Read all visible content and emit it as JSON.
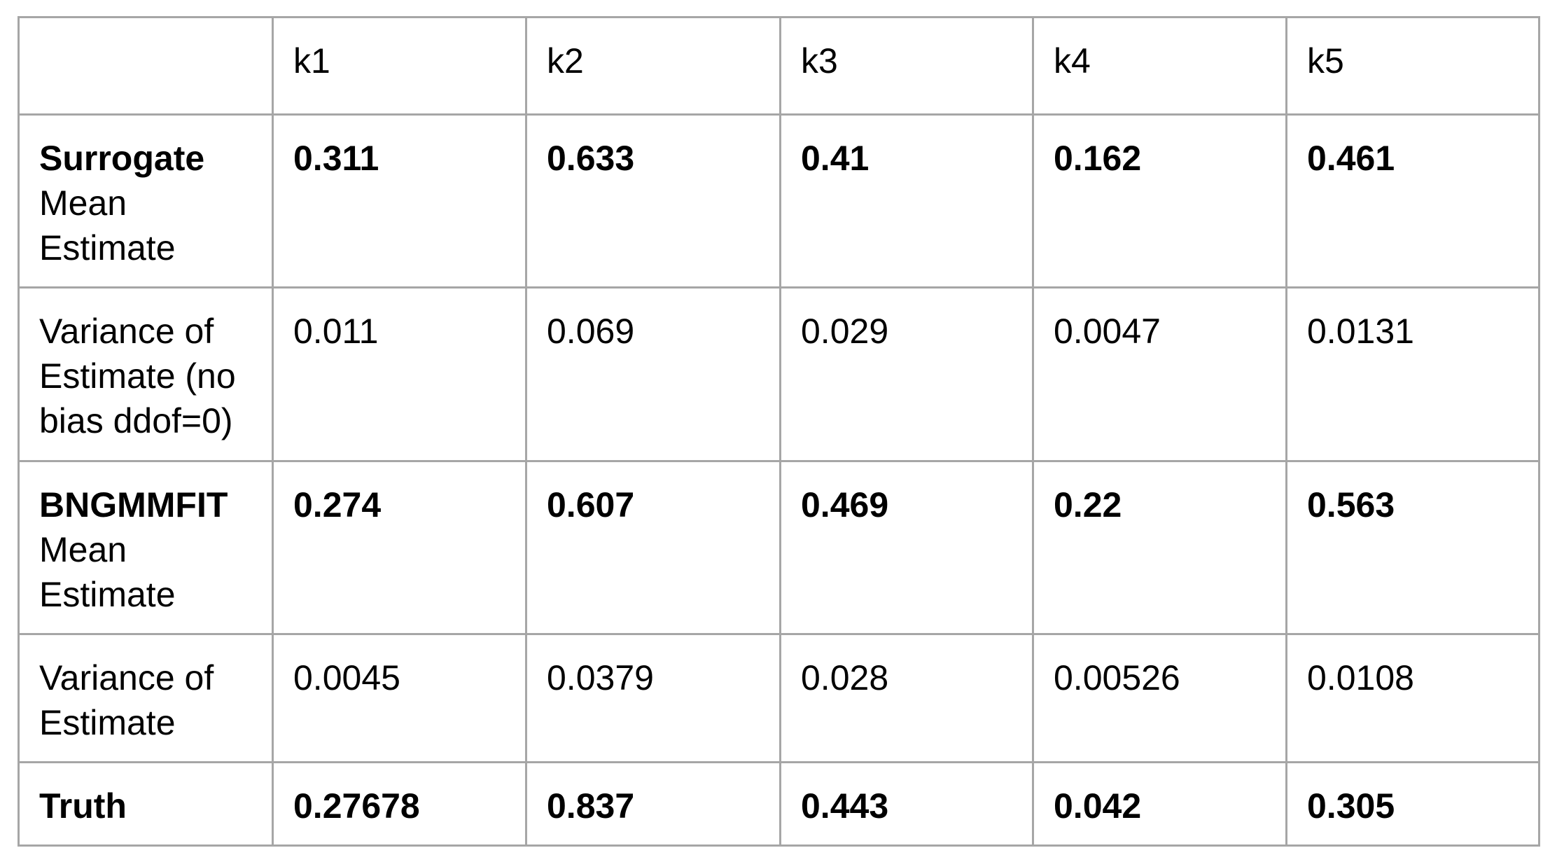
{
  "table": {
    "columns": [
      "k1",
      "k2",
      "k3",
      "k4",
      "k5"
    ],
    "rows": [
      {
        "label_bold": "Surrogate",
        "label": "Mean Estimate",
        "bold": true,
        "values": [
          0.311,
          0.633,
          0.41,
          0.162,
          0.461
        ]
      },
      {
        "label": "Variance of Estimate (no bias ddof=0)",
        "bold": false,
        "values": [
          0.011,
          0.069,
          0.029,
          0.0047,
          0.0131
        ]
      },
      {
        "label_bold": "BNGMMFIT",
        "label": "Mean Estimate",
        "bold": true,
        "values": [
          0.274,
          0.607,
          0.469,
          0.22,
          0.563
        ]
      },
      {
        "label": "Variance of Estimate",
        "bold": false,
        "values": [
          0.0045,
          0.0379,
          0.028,
          0.00526,
          0.0108
        ]
      },
      {
        "label_bold": "Truth",
        "bold": true,
        "values": [
          0.27678,
          0.837,
          0.443,
          0.042,
          0.305
        ]
      }
    ]
  }
}
